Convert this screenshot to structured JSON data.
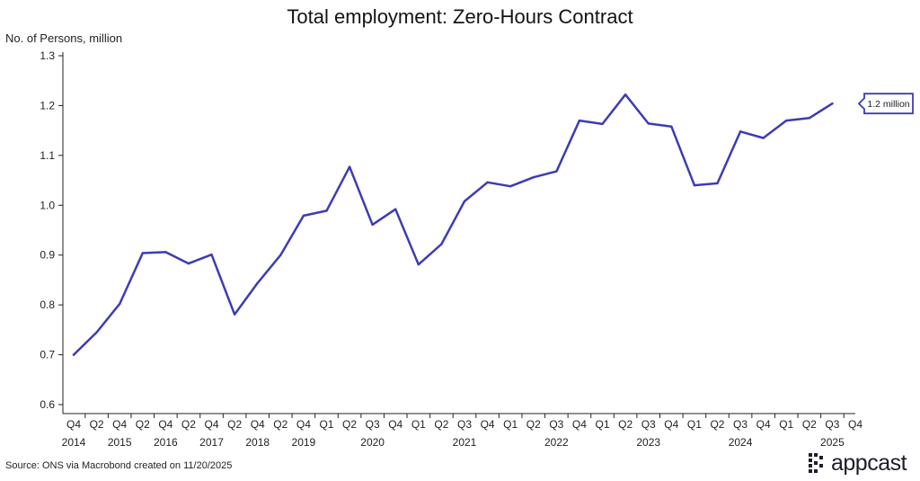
{
  "chart_data": {
    "type": "line",
    "title": "Total employment: Zero-Hours Contract",
    "ylabel": "No. of Persons, million",
    "xlabel": "",
    "ylim": [
      0.6,
      1.3
    ],
    "yticks": [
      0.6,
      0.7,
      0.8,
      0.9,
      1.0,
      1.1,
      1.2,
      1.3
    ],
    "ytick_labels": [
      "0.6",
      "0.7",
      "0.8",
      "0.9",
      "1.0",
      "1.1",
      "1.2",
      "1.3"
    ],
    "grid": false,
    "legend": "none",
    "line_color": "#3c3cb4",
    "x_ticks": [
      {
        "q": "Q4",
        "year": "2014"
      },
      {
        "q": "Q2",
        "year": ""
      },
      {
        "q": "Q4",
        "year": "2015"
      },
      {
        "q": "Q2",
        "year": ""
      },
      {
        "q": "Q4",
        "year": "2016"
      },
      {
        "q": "Q2",
        "year": ""
      },
      {
        "q": "Q4",
        "year": "2017"
      },
      {
        "q": "Q2",
        "year": ""
      },
      {
        "q": "Q4",
        "year": "2018"
      },
      {
        "q": "Q2",
        "year": ""
      },
      {
        "q": "Q4",
        "year": "2019"
      },
      {
        "q": "Q1",
        "year": ""
      },
      {
        "q": "Q2",
        "year": ""
      },
      {
        "q": "Q3",
        "year": "2020"
      },
      {
        "q": "Q4",
        "year": ""
      },
      {
        "q": "Q1",
        "year": ""
      },
      {
        "q": "Q2",
        "year": ""
      },
      {
        "q": "Q3",
        "year": "2021"
      },
      {
        "q": "Q4",
        "year": ""
      },
      {
        "q": "Q1",
        "year": ""
      },
      {
        "q": "Q2",
        "year": ""
      },
      {
        "q": "Q3",
        "year": "2022"
      },
      {
        "q": "Q4",
        "year": ""
      },
      {
        "q": "Q1",
        "year": ""
      },
      {
        "q": "Q2",
        "year": ""
      },
      {
        "q": "Q3",
        "year": "2023"
      },
      {
        "q": "Q4",
        "year": ""
      },
      {
        "q": "Q1",
        "year": ""
      },
      {
        "q": "Q2",
        "year": ""
      },
      {
        "q": "Q3",
        "year": "2024"
      },
      {
        "q": "Q4",
        "year": ""
      },
      {
        "q": "Q1",
        "year": ""
      },
      {
        "q": "Q2",
        "year": ""
      },
      {
        "q": "Q3",
        "year": "2025"
      },
      {
        "q": "Q4",
        "year": ""
      }
    ],
    "series": [
      {
        "values": [
          0.7,
          0.745,
          0.802,
          0.904,
          0.906,
          0.883,
          0.901,
          0.781,
          0.844,
          0.9,
          0.979,
          0.989,
          1.077,
          0.961,
          0.992,
          0.881,
          0.922,
          1.008,
          1.046,
          1.038,
          1.056,
          1.068,
          1.17,
          1.163,
          1.222,
          1.164,
          1.158,
          1.04,
          1.044,
          1.148,
          1.135,
          1.17,
          1.175,
          1.204
        ]
      }
    ],
    "annotation": {
      "label": "1.2 million",
      "value": 1.204
    }
  },
  "footer": {
    "source": "Source: ONS via Macrobond created on 11/20/2025",
    "brand": "appcast"
  }
}
